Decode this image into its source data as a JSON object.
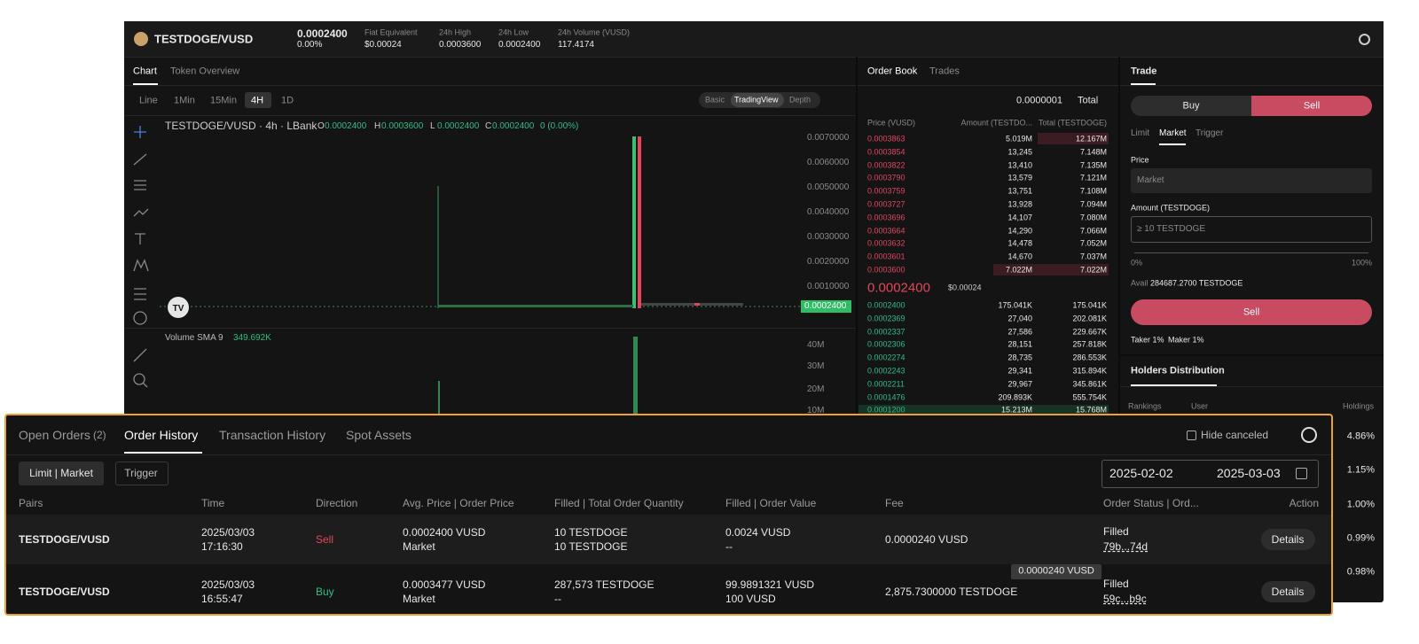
{
  "header": {
    "pair": "TESTDOGE/VUSD",
    "price": "0.0002400",
    "change": "0.00%",
    "stats": [
      {
        "label": "Fiat Equivalent",
        "value": "$0.00024"
      },
      {
        "label": "24h High",
        "value": "0.0003600"
      },
      {
        "label": "24h Low",
        "value": "0.0002400"
      },
      {
        "label": "24h Volume (VUSD)",
        "value": "117.4174"
      }
    ]
  },
  "chart_panel": {
    "tabs": [
      "Chart",
      "Token Overview"
    ],
    "intervals": [
      "Line",
      "1Min",
      "15Min",
      "4H",
      "1D"
    ],
    "modes": [
      "Basic",
      "TradingView",
      "Depth"
    ],
    "legend": "TESTDOGE/VUSD · 4h · LBank",
    "ohlc": [
      {
        "key": "O",
        "value": "0.0002400"
      },
      {
        "key": "H",
        "value": "0.0003600"
      },
      {
        "key": "L",
        "value": "0.0002400"
      },
      {
        "key": "C",
        "value": "0.0002400"
      }
    ],
    "ohlc_change": "0 (0.00%)",
    "price_axis": [
      "0.0070000",
      "0.0060000",
      "0.0050000",
      "0.0040000",
      "0.0030000",
      "0.0020000",
      "0.0010000"
    ],
    "current_price": "0.0002400",
    "volume_label": "Volume SMA 9",
    "volume_value": "349.692K",
    "volume_axis": [
      "40M",
      "30M",
      "20M",
      "10M"
    ]
  },
  "order_book": {
    "tabs": [
      "Order Book",
      "Trades"
    ],
    "precision": "0.0000001",
    "total_mode": "Total",
    "columns": [
      "Price (VUSD)",
      "Amount (TESTDO...",
      "Total (TESTDOGE)"
    ],
    "asks": [
      [
        "0.0003863",
        "5.019M",
        "12.167M"
      ],
      [
        "0.0003854",
        "13,245",
        "7.148M"
      ],
      [
        "0.0003822",
        "13,410",
        "7.135M"
      ],
      [
        "0.0003790",
        "13,579",
        "7.121M"
      ],
      [
        "0.0003759",
        "13,751",
        "7.108M"
      ],
      [
        "0.0003727",
        "13,928",
        "7.094M"
      ],
      [
        "0.0003696",
        "14,107",
        "7.080M"
      ],
      [
        "0.0003664",
        "14,290",
        "7.066M"
      ],
      [
        "0.0003632",
        "14,478",
        "7.052M"
      ],
      [
        "0.0003601",
        "14,670",
        "7.037M"
      ],
      [
        "0.0003600",
        "7.022M",
        "7.022M"
      ]
    ],
    "mid_price": "0.0002400",
    "mid_fiat": "$0.00024",
    "bids": [
      [
        "0.0002400",
        "175.041K",
        "175.041K"
      ],
      [
        "0.0002369",
        "27,040",
        "202.081K"
      ],
      [
        "0.0002337",
        "27,586",
        "229.667K"
      ],
      [
        "0.0002306",
        "28,151",
        "257.818K"
      ],
      [
        "0.0002274",
        "28,735",
        "286.553K"
      ],
      [
        "0.0002243",
        "29,341",
        "315.894K"
      ],
      [
        "0.0002211",
        "29,967",
        "345.861K"
      ],
      [
        "0.0001476",
        "209.893K",
        "555.754K"
      ],
      [
        "0.0001200",
        "15.213M",
        "15.768M"
      ]
    ]
  },
  "trade_panel": {
    "title": "Trade",
    "sides": [
      "Buy",
      "Sell"
    ],
    "order_types": [
      "Limit",
      "Market",
      "Trigger"
    ],
    "price_label": "Price",
    "price_input": "Market",
    "amount_label": "Amount (TESTDOGE)",
    "amount_placeholder": "≥ 10 TESTDOGE",
    "slider_min": "0%",
    "slider_max": "100%",
    "avail_label": "Avail",
    "avail_value": "284687.2700 TESTDOGE",
    "submit": "Sell",
    "taker": "Taker 1%",
    "maker": "Maker 1%",
    "holders_title": "Holders Distribution",
    "holders_columns": [
      "Rankings",
      "User",
      "Holdings"
    ],
    "holdings": [
      "4.86%",
      "1.15%",
      "1.00%",
      "0.99%",
      "0.98%"
    ]
  },
  "orders_panel": {
    "tabs": [
      "Open Orders",
      "Order History",
      "Transaction History",
      "Spot Assets"
    ],
    "open_count": "(2)",
    "hide_canceled": "Hide canceled",
    "filters": [
      "Limit | Market",
      "Trigger"
    ],
    "date_from": "2025-02-02",
    "date_to": "2025-03-03",
    "columns": [
      "Pairs",
      "Time",
      "Direction",
      "Avg. Price | Order Price",
      "Filled | Total Order Quantity",
      "Filled | Order Value",
      "Fee",
      "Order Status | Ord...",
      "Action"
    ],
    "rows": [
      {
        "pair": "TESTDOGE/VUSD",
        "date": "2025/03/03",
        "time": "17:16:30",
        "direction": "Sell",
        "avg_price": "0.0002400 VUSD",
        "order_price": "Market",
        "filled_qty": "10 TESTDOGE",
        "total_qty": "10 TESTDOGE",
        "filled_value": "0.0024 VUSD",
        "order_value": "--",
        "fee": "0.0000240 VUSD",
        "status": "Filled",
        "order_id": "79b...74d",
        "action": "Details"
      },
      {
        "pair": "TESTDOGE/VUSD",
        "date": "2025/03/03",
        "time": "16:55:47",
        "direction": "Buy",
        "avg_price": "0.0003477 VUSD",
        "order_price": "Market",
        "filled_qty": "287,573 TESTDOGE",
        "total_qty": "--",
        "filled_value": "99.9891321 VUSD",
        "order_value": "100 VUSD",
        "fee": "2,875.7300000 TESTDOGE",
        "status": "Filled",
        "order_id": "59c...b9c",
        "action": "Details"
      }
    ],
    "tooltip": "0.0000240 VUSD"
  }
}
